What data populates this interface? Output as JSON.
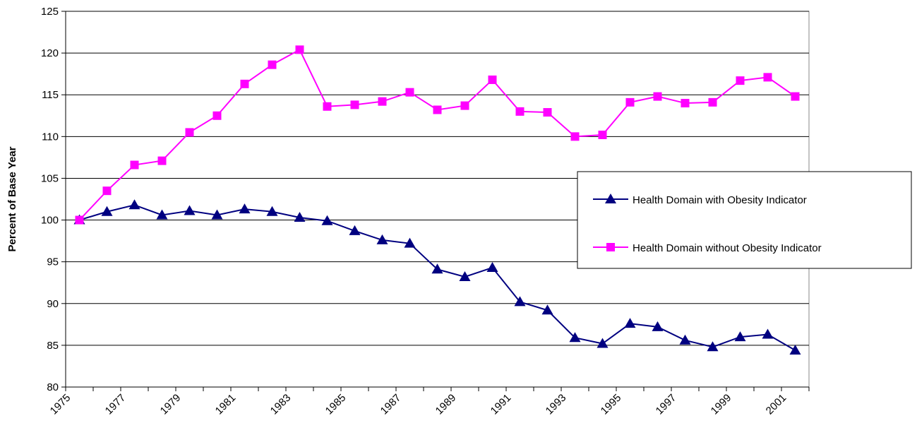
{
  "chart_data": {
    "type": "line",
    "y_label": "Percent of Base Year",
    "categories": [
      "1975",
      null,
      "1977",
      null,
      "1979",
      null,
      "1981",
      null,
      "1983",
      null,
      "1985",
      null,
      "1987",
      null,
      "1989",
      null,
      "1991",
      null,
      "1993",
      null,
      "1995",
      null,
      "1997",
      null,
      "1999",
      null,
      "2001"
    ],
    "series": [
      {
        "name": "Health Domain with Obesity Indicator",
        "color": "#000080",
        "marker": "triangle",
        "values": [
          100,
          101.0,
          101.8,
          100.6,
          101.1,
          100.6,
          101.3,
          101.0,
          100.3,
          99.9,
          98.7,
          97.6,
          97.2,
          94.1,
          93.2,
          94.3,
          90.2,
          89.2,
          85.9,
          85.2,
          87.6,
          87.2,
          85.6,
          84.8,
          86.0,
          86.3,
          84.4
        ]
      },
      {
        "name": "Health Domain without Obesity Indicator",
        "color": "#ff00ff",
        "marker": "square",
        "values": [
          100,
          103.5,
          106.6,
          107.1,
          110.5,
          112.5,
          116.3,
          118.6,
          120.4,
          113.6,
          113.8,
          114.2,
          115.3,
          113.2,
          113.7,
          116.8,
          113.0,
          112.9,
          110.0,
          110.2,
          114.1,
          114.8,
          114.0,
          114.1,
          116.7,
          117.1,
          114.8
        ]
      }
    ],
    "ylim": [
      80,
      125
    ],
    "yticks": [
      80,
      85,
      90,
      95,
      100,
      105,
      110,
      115,
      120,
      125
    ],
    "grid": true,
    "legend": "right"
  }
}
